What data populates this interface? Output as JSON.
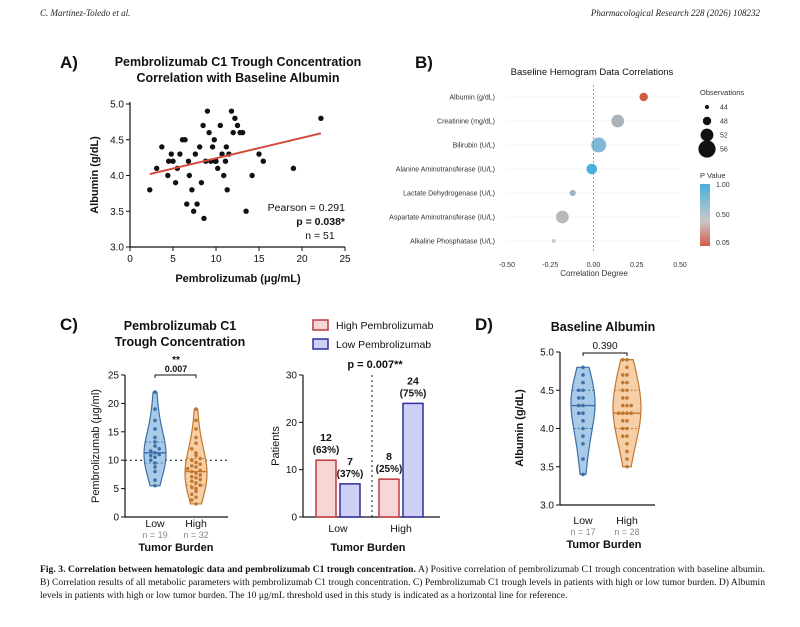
{
  "header": {
    "left": "C. Martínez-Toledo et al.",
    "right": "Pharmacological Research 228 (2026) 108232"
  },
  "colors": {
    "low": "#6fa8d6",
    "low_dark": "#3b6fa8",
    "high": "#f2a765",
    "high_dark": "#c0772f",
    "trend": "#d24b3a",
    "bar_high_fill": "#f7d6d6",
    "bar_high_stroke": "#c0393b",
    "bar_low_fill": "#cfd0f5",
    "bar_low_stroke": "#2e2e9c"
  },
  "panels": {
    "A": {
      "letter": "A)"
    },
    "B": {
      "letter": "B)"
    },
    "C": {
      "letter": "C)"
    },
    "D": {
      "letter": "D)"
    }
  },
  "chart_data": [
    {
      "id": "A",
      "type": "scatter",
      "title": "Pembrolizumab C1 Trough Concentration",
      "subtitle": "Correlation with Baseline Albumin",
      "xlabel": "Pembrolizumab (μg/mL)",
      "ylabel": "Albumin (g/dL)",
      "xlim": [
        0,
        25
      ],
      "ylim": [
        3.0,
        5.0
      ],
      "xticks": [
        "0",
        "5",
        "10",
        "15",
        "20",
        "25"
      ],
      "yticks": [
        "3.0",
        "3.5",
        "4.0",
        "4.5",
        "5.0"
      ],
      "points": [
        [
          2.3,
          3.8
        ],
        [
          3.1,
          4.1
        ],
        [
          3.7,
          4.4
        ],
        [
          4.4,
          4.0
        ],
        [
          4.8,
          4.3
        ],
        [
          5.0,
          4.2
        ],
        [
          5.3,
          3.9
        ],
        [
          5.5,
          4.1
        ],
        [
          5.8,
          4.3
        ],
        [
          6.1,
          4.5
        ],
        [
          6.4,
          4.5
        ],
        [
          6.6,
          3.6
        ],
        [
          6.8,
          4.2
        ],
        [
          6.9,
          4.0
        ],
        [
          7.2,
          3.8
        ],
        [
          7.4,
          3.5
        ],
        [
          7.6,
          4.3
        ],
        [
          7.8,
          3.6
        ],
        [
          8.1,
          4.4
        ],
        [
          8.3,
          3.9
        ],
        [
          8.5,
          4.7
        ],
        [
          8.6,
          3.4
        ],
        [
          8.8,
          4.2
        ],
        [
          9.0,
          4.9
        ],
        [
          9.2,
          4.6
        ],
        [
          9.4,
          4.2
        ],
        [
          9.6,
          4.4
        ],
        [
          9.8,
          4.5
        ],
        [
          10.0,
          4.2
        ],
        [
          10.2,
          4.1
        ],
        [
          10.5,
          4.7
        ],
        [
          10.7,
          4.3
        ],
        [
          10.9,
          4.0
        ],
        [
          11.1,
          4.2
        ],
        [
          11.3,
          3.8
        ],
        [
          11.5,
          4.3
        ],
        [
          11.8,
          4.9
        ],
        [
          12.0,
          4.6
        ],
        [
          12.2,
          4.8
        ],
        [
          12.5,
          4.7
        ],
        [
          12.8,
          4.6
        ],
        [
          13.1,
          4.6
        ],
        [
          13.5,
          3.5
        ],
        [
          14.2,
          4.0
        ],
        [
          15.0,
          4.3
        ],
        [
          15.5,
          4.2
        ],
        [
          19.0,
          4.1
        ],
        [
          22.2,
          4.8
        ],
        [
          4.5,
          4.2
        ],
        [
          9.9,
          4.2
        ],
        [
          11.2,
          4.4
        ]
      ],
      "trend": [
        [
          2.3,
          4.02
        ],
        [
          22.2,
          4.59
        ]
      ],
      "stats": [
        "Pearson = 0.291",
        "p = 0.038*",
        "n = 51"
      ]
    },
    {
      "id": "B",
      "type": "scatter",
      "title": "Baseline Hemogram Data Correlations",
      "xlabel": "Correlation Degree",
      "xlim": [
        -0.5,
        0.5
      ],
      "xticks": [
        "-0.50",
        "-0.25",
        "0.00",
        "0.25",
        "0.50"
      ],
      "categories": [
        "Albumin (g/dL)",
        "Creatinine (mg/dL)",
        "Bilirubin (U/L)",
        "Alanine Aminotransferase (IU/L)",
        "Lactate Dehydrogenase (U/L)",
        "Aspartate Aminotransferase (IU/L)",
        "Alkaline Phosphatase (U/L)"
      ],
      "values": [
        0.29,
        0.14,
        0.03,
        -0.01,
        -0.12,
        -0.18,
        -0.23
      ],
      "observations": [
        48,
        52,
        54,
        50,
        46,
        52,
        44
      ],
      "colors": [
        "#d05d47",
        "#aab4ba",
        "#7fb9d6",
        "#4ab0dc",
        "#9fb6c2",
        "#b7b9ba",
        "#c9c9c9"
      ],
      "legend_size_title": "Observations",
      "legend_sizes": [
        "44",
        "48",
        "52",
        "56"
      ],
      "legend_color_title": "P Value",
      "legend_color_ticks": [
        "1.00",
        "0.50",
        "0.05"
      ]
    },
    {
      "id": "C1",
      "type": "violin",
      "title": "Pembrolizumab C1",
      "subtitle": "Trough Concentration",
      "ylabel": "Pembrolizumab (μg/ml)",
      "xlabel": "Tumor Burden",
      "ylim": [
        0,
        25
      ],
      "yticks": [
        "0",
        "5",
        "10",
        "15",
        "20",
        "25"
      ],
      "categories": [
        "Low",
        "High"
      ],
      "n_labels": [
        "n = 19",
        "n = 32"
      ],
      "sig": "**",
      "pvalue": "0.007",
      "reference_line": 10,
      "low_values": [
        5.5,
        6.5,
        8.0,
        8.8,
        9.5,
        10.0,
        10.5,
        10.8,
        11.0,
        11.3,
        11.6,
        12.0,
        12.5,
        13.2,
        14.0,
        15.5,
        17.0,
        19.0,
        22.0
      ],
      "high_values": [
        2.3,
        3.0,
        3.5,
        4.0,
        4.5,
        5.0,
        5.2,
        5.6,
        6.0,
        6.3,
        6.6,
        6.9,
        7.1,
        7.4,
        7.7,
        8.0,
        8.2,
        8.5,
        8.8,
        9.0,
        9.3,
        9.6,
        10.0,
        10.3,
        10.8,
        11.3,
        12.0,
        13.0,
        14.0,
        15.5,
        17.0,
        19.0
      ]
    },
    {
      "id": "C2",
      "type": "bar",
      "pvalue_label": "p = 0.007**",
      "ylabel": "Patients",
      "xlabel": "Tumor Burden",
      "ylim": [
        0,
        30
      ],
      "yticks": [
        "0",
        "10",
        "20",
        "30"
      ],
      "categories": [
        "Low",
        "High"
      ],
      "series": [
        {
          "name": "High Pembrolizumab",
          "values": [
            12,
            8
          ],
          "labels": [
            "12",
            "8"
          ],
          "pcts": [
            "(63%)",
            "(25%)"
          ]
        },
        {
          "name": "Low Pembrolizumab",
          "values": [
            7,
            24
          ],
          "labels": [
            "7",
            "24"
          ],
          "pcts": [
            "(37%)",
            "(75%)"
          ]
        }
      ]
    },
    {
      "id": "D",
      "type": "violin",
      "title": "Baseline Albumin",
      "ylabel": "Albumin (g/dL)",
      "xlabel": "Tumor Burden",
      "ylim": [
        3.0,
        5.0
      ],
      "yticks": [
        "3.0",
        "3.5",
        "4.0",
        "4.5",
        "5.0"
      ],
      "categories": [
        "Low",
        "High"
      ],
      "n_labels": [
        "n = 17",
        "n = 28"
      ],
      "pvalue": "0.390",
      "low_values": [
        3.4,
        3.6,
        3.8,
        3.9,
        4.0,
        4.1,
        4.2,
        4.2,
        4.3,
        4.3,
        4.4,
        4.4,
        4.5,
        4.5,
        4.6,
        4.7,
        4.8
      ],
      "high_values": [
        3.5,
        3.6,
        3.7,
        3.8,
        3.9,
        3.9,
        4.0,
        4.0,
        4.1,
        4.1,
        4.2,
        4.2,
        4.2,
        4.2,
        4.3,
        4.3,
        4.3,
        4.4,
        4.4,
        4.5,
        4.5,
        4.6,
        4.6,
        4.7,
        4.7,
        4.8,
        4.9,
        4.9
      ]
    }
  ],
  "caption": {
    "lead": "Fig. 3. Correlation between hematologic data and pembrolizumab C1 trough concentration.",
    "body": " A) Positive correlation of pembrolizumab C1 trough concentration with baseline albumin. B) Correlation results of all metabolic parameters with pembrolizumab C1 trough concentration. C) Pembrolizumab C1 trough levels in patients with high or low tumor burden. D) Albumin levels in patients with high or low tumor burden. The 10 μg/mL threshold used in this study is indicated as a horizontal line for reference."
  }
}
